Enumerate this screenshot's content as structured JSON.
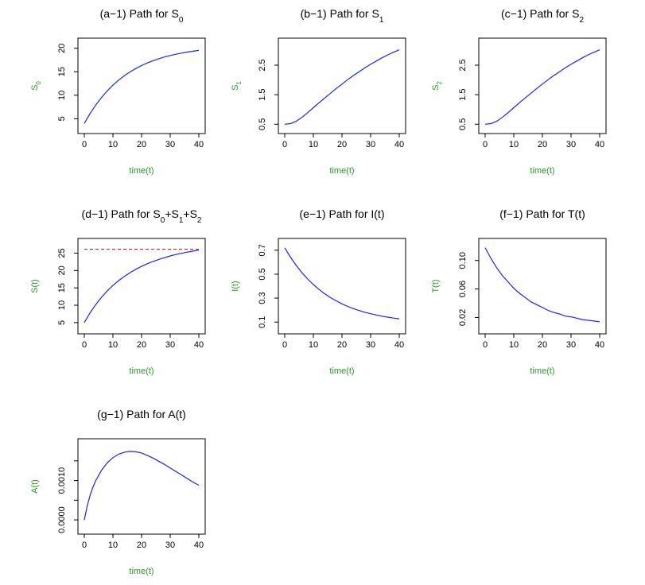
{
  "colors": {
    "curve": "#1f1fff",
    "axis_label": "#2a9a2a",
    "reference_line": "#cc0000"
  },
  "chart_data": [
    {
      "type": "line",
      "title": [
        "(a−1) Path for S",
        {
          "sub": "0"
        }
      ],
      "xlabel": "time(t)",
      "ylabel": [
        "S",
        {
          "sub": "0"
        }
      ],
      "xlim": [
        0,
        40
      ],
      "ylim": [
        3.2,
        20.8
      ],
      "xticks": [
        0,
        10,
        20,
        30,
        40
      ],
      "yticks": [
        5,
        10,
        15,
        20
      ],
      "yticklabels": [
        "5",
        "10",
        "15",
        "20"
      ],
      "x": [
        0,
        2,
        4,
        6,
        8,
        10,
        12,
        14,
        16,
        18,
        20,
        22,
        24,
        26,
        28,
        30,
        32,
        34,
        36,
        38,
        40
      ],
      "series": [
        {
          "name": "S0",
          "values": [
            4,
            6.09,
            7.92,
            9.52,
            10.92,
            12.15,
            13.22,
            14.16,
            14.98,
            15.69,
            16.32,
            16.87,
            17.35,
            17.77,
            18.14,
            18.46,
            18.74,
            18.98,
            19.2,
            19.38,
            19.55
          ]
        }
      ]
    },
    {
      "type": "line",
      "title": [
        "(b−1) Path for S",
        {
          "sub": "1"
        }
      ],
      "xlabel": "time(t)",
      "ylabel": [
        "S",
        {
          "sub": "1"
        }
      ],
      "xlim": [
        0,
        40
      ],
      "ylim": [
        0.4,
        3.2
      ],
      "xticks": [
        0,
        10,
        20,
        30,
        40
      ],
      "yticks": [
        0.5,
        1.5,
        2.5
      ],
      "yticklabels": [
        "0.5",
        "1.5",
        "2.5"
      ],
      "x": [
        0,
        2,
        4,
        6,
        8,
        10,
        12,
        14,
        16,
        18,
        20,
        22,
        24,
        26,
        28,
        30,
        32,
        34,
        36,
        38,
        40
      ],
      "series": [
        {
          "name": "S1",
          "values": [
            0.5,
            0.52,
            0.6,
            0.73,
            0.89,
            1.06,
            1.23,
            1.39,
            1.55,
            1.71,
            1.86,
            2.01,
            2.15,
            2.28,
            2.41,
            2.53,
            2.64,
            2.75,
            2.85,
            2.94,
            3.02
          ]
        }
      ]
    },
    {
      "type": "line",
      "title": [
        "(c−1) Path for S",
        {
          "sub": "2"
        }
      ],
      "xlabel": "time(t)",
      "ylabel": [
        "S",
        {
          "sub": "2"
        }
      ],
      "xlim": [
        0,
        40
      ],
      "ylim": [
        0.4,
        3.2
      ],
      "xticks": [
        0,
        10,
        20,
        30,
        40
      ],
      "yticks": [
        0.5,
        1.5,
        2.5
      ],
      "yticklabels": [
        "0.5",
        "1.5",
        "2.5"
      ],
      "x": [
        0,
        2,
        4,
        6,
        8,
        10,
        12,
        14,
        16,
        18,
        20,
        22,
        24,
        26,
        28,
        30,
        32,
        34,
        36,
        38,
        40
      ],
      "series": [
        {
          "name": "S2",
          "values": [
            0.5,
            0.52,
            0.6,
            0.73,
            0.89,
            1.06,
            1.23,
            1.39,
            1.55,
            1.71,
            1.86,
            2.01,
            2.15,
            2.28,
            2.41,
            2.53,
            2.64,
            2.75,
            2.85,
            2.94,
            3.02
          ]
        }
      ]
    },
    {
      "type": "line",
      "title": [
        "(d−1) Path for S",
        {
          "sub": "0"
        },
        "+S",
        {
          "sub": "1"
        },
        "+S",
        {
          "sub": "2"
        }
      ],
      "xlabel": "time(t)",
      "ylabel": [
        "S(t)"
      ],
      "xlim": [
        0,
        40
      ],
      "ylim": [
        3.6,
        27.4
      ],
      "xticks": [
        0,
        10,
        20,
        30,
        40
      ],
      "yticks": [
        5,
        10,
        15,
        20,
        25
      ],
      "yticklabels": [
        "5",
        "10",
        "15",
        "20",
        "25"
      ],
      "x": [
        0,
        2,
        4,
        6,
        8,
        10,
        12,
        14,
        16,
        18,
        20,
        22,
        24,
        26,
        28,
        30,
        32,
        34,
        36,
        38,
        40
      ],
      "series": [
        {
          "name": "S(t)",
          "values": [
            5,
            7.8,
            10.2,
            12.3,
            14.1,
            15.7,
            17.1,
            18.3,
            19.4,
            20.35,
            21.2,
            21.95,
            22.6,
            23.2,
            23.7,
            24.2,
            24.6,
            24.95,
            25.3,
            25.6,
            25.85
          ]
        }
      ],
      "hline": 26.1
    },
    {
      "type": "line",
      "title": [
        "(e−1) Path for I(t)"
      ],
      "xlabel": "time(t)",
      "ylabel": [
        "I(t)"
      ],
      "xlim": [
        0,
        40
      ],
      "ylim": [
        0.055,
        0.745
      ],
      "xticks": [
        0,
        10,
        20,
        30,
        40
      ],
      "yticks": [
        0.1,
        0.3,
        0.5,
        0.7
      ],
      "yticklabels": [
        "0.1",
        "0.3",
        "0.5",
        "0.7"
      ],
      "x": [
        0,
        2,
        4,
        6,
        8,
        10,
        12,
        14,
        16,
        18,
        20,
        22,
        24,
        26,
        28,
        30,
        32,
        34,
        36,
        38,
        40
      ],
      "series": [
        {
          "name": "I(t)",
          "values": [
            0.72,
            0.642,
            0.573,
            0.513,
            0.46,
            0.413,
            0.372,
            0.336,
            0.304,
            0.277,
            0.252,
            0.231,
            0.212,
            0.196,
            0.182,
            0.17,
            0.159,
            0.149,
            0.141,
            0.133,
            0.127
          ]
        }
      ]
    },
    {
      "type": "line",
      "title": [
        "(f−1) Path for T(t)"
      ],
      "xlabel": "time(t)",
      "ylabel": [
        "T(t)"
      ],
      "xlim": [
        0,
        40
      ],
      "ylim": [
        0.006,
        0.122
      ],
      "xticks": [
        0,
        10,
        20,
        30,
        40
      ],
      "yticks": [
        0.02,
        0.06,
        0.1
      ],
      "yticklabels": [
        "0.02",
        "0.06",
        "0.10"
      ],
      "x": [
        0,
        2,
        4,
        6,
        8,
        10,
        12,
        14,
        16,
        18,
        20,
        22,
        24,
        26,
        28,
        30,
        32,
        34,
        36,
        38,
        40
      ],
      "series": [
        {
          "name": "T(t)",
          "values": [
            0.118,
            0.103,
            0.09,
            0.079,
            0.07,
            0.061,
            0.054,
            0.048,
            0.042,
            0.038,
            0.034,
            0.03,
            0.027,
            0.025,
            0.022,
            0.021,
            0.019,
            0.017,
            0.016,
            0.015,
            0.014
          ]
        }
      ]
    },
    {
      "type": "line",
      "title": [
        "(g−1) Path for A(t)"
      ],
      "xlabel": "time(t)",
      "ylabel": [
        "A(t)"
      ],
      "xlim": [
        0,
        40
      ],
      "ylim": [
        -0.0002,
        0.0019
      ],
      "xticks": [
        0,
        10,
        20,
        30,
        40
      ],
      "yticks": [
        0,
        0.001
      ],
      "yticklabels": [
        "0.0000",
        "0.0010"
      ],
      "extra_yticks": [
        0.0005,
        0.0015
      ],
      "x": [
        0,
        1,
        2,
        3,
        4,
        6,
        8,
        10,
        12,
        14,
        16,
        18,
        20,
        22,
        24,
        26,
        28,
        30,
        32,
        34,
        36,
        38,
        40
      ],
      "series": [
        {
          "name": "A(t)",
          "values": [
            0.0,
            0.00035,
            0.00062,
            0.00083,
            0.001,
            0.00126,
            0.00145,
            0.00158,
            0.00167,
            0.00172,
            0.00174,
            0.00173,
            0.0017,
            0.00164,
            0.00157,
            0.00149,
            0.00141,
            0.00132,
            0.00123,
            0.00114,
            0.00105,
            0.00096,
            0.00088
          ]
        }
      ]
    }
  ]
}
